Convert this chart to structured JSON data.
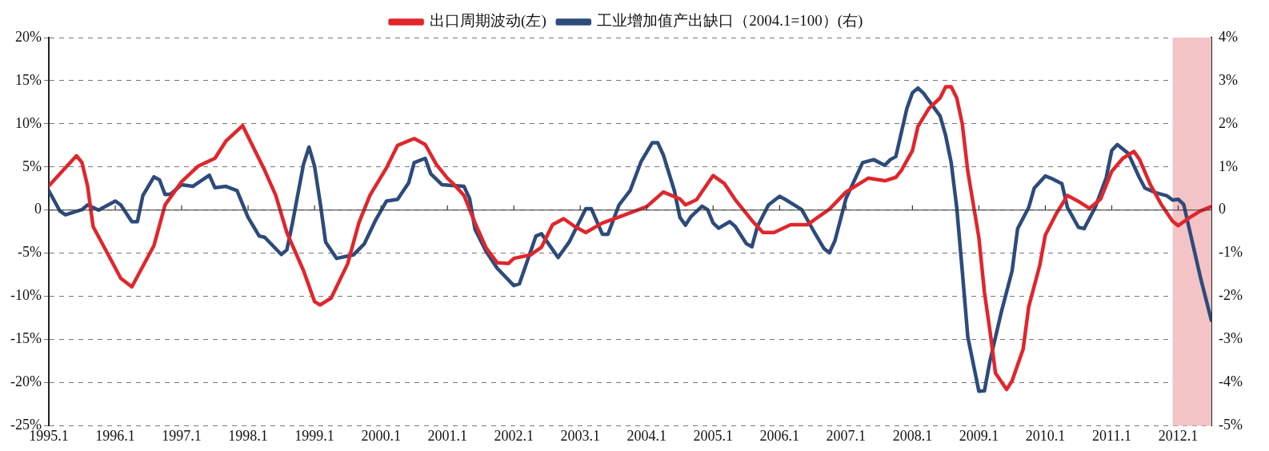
{
  "chart_data": {
    "type": "line",
    "xlim": [
      "1995-01",
      "2012-07"
    ],
    "xticks": [
      {
        "value": "1995-01",
        "label": "1995.1"
      },
      {
        "value": "1996-01",
        "label": "1996.1"
      },
      {
        "value": "1997-01",
        "label": "1997.1"
      },
      {
        "value": "1998-01",
        "label": "1998.1"
      },
      {
        "value": "1999-01",
        "label": "1999.1"
      },
      {
        "value": "2000-01",
        "label": "2000.1"
      },
      {
        "value": "2001-01",
        "label": "2001.1"
      },
      {
        "value": "2002-01",
        "label": "2002.1"
      },
      {
        "value": "2003-01",
        "label": "2003.1"
      },
      {
        "value": "2004-01",
        "label": "2004.1"
      },
      {
        "value": "2005-01",
        "label": "2005.1"
      },
      {
        "value": "2006-01",
        "label": "2006.1"
      },
      {
        "value": "2007-01",
        "label": "2007.1"
      },
      {
        "value": "2008-01",
        "label": "2008.1"
      },
      {
        "value": "2009-01",
        "label": "2009.1"
      },
      {
        "value": "2010-01",
        "label": "2010.1"
      },
      {
        "value": "2011-01",
        "label": "2011.1"
      },
      {
        "value": "2012-01",
        "label": "2012.1"
      }
    ],
    "ylim": [
      -25,
      20
    ],
    "yticks": [
      {
        "value": -25,
        "label": "-25%"
      },
      {
        "value": -20,
        "label": "-20%"
      },
      {
        "value": -15,
        "label": "-15%"
      },
      {
        "value": -10,
        "label": "-10%"
      },
      {
        "value": -5,
        "label": "-5%"
      },
      0,
      {
        "value": 5,
        "label": "5%"
      },
      {
        "value": 10,
        "label": "10%"
      },
      {
        "value": 15,
        "label": "15%"
      },
      {
        "value": 20,
        "label": "20%"
      }
    ],
    "y2lim": [
      -5,
      4
    ],
    "y2ticks": [
      {
        "value": -5,
        "label": "-5%"
      },
      {
        "value": -4,
        "label": "-4%"
      },
      {
        "value": -3,
        "label": "-3%"
      },
      {
        "value": -2,
        "label": "-2%"
      },
      {
        "value": -1,
        "label": "-1%"
      },
      0,
      {
        "value": 1,
        "label": "1%"
      },
      {
        "value": 2,
        "label": "2%"
      },
      {
        "value": 3,
        "label": "3%"
      },
      {
        "value": 4,
        "label": "4%"
      }
    ],
    "grid": "y",
    "legend": "top",
    "marker": "none",
    "line_style": "solid",
    "bands": [
      {
        "axis": "x",
        "from": "2011-12",
        "to": "2012-07",
        "color": "#f4c3c5"
      }
    ],
    "series": [
      {
        "name": "出口周期波动(左)",
        "color": "#e0262c",
        "x": [
          "1995-01",
          "1995-06",
          "1995-07",
          "1995-08",
          "1995-09",
          "1995-12",
          "1996-02",
          "1996-04",
          "1996-05",
          "1996-08",
          "1996-10",
          "1997-01",
          "1997-04",
          "1997-07",
          "1997-09",
          "1997-12",
          "1998-01",
          "1998-04",
          "1998-06",
          "1998-08",
          "1998-11",
          "1999-01",
          "1999-02",
          "1999-04",
          "1999-07",
          "1999-09",
          "1999-11",
          "2000-02",
          "2000-04",
          "2000-07",
          "2000-09",
          "2000-11",
          "2001-01",
          "2001-02",
          "2001-04",
          "2001-06",
          "2001-08",
          "2001-10",
          "2001-12",
          "2002-01",
          "2002-04",
          "2002-06",
          "2002-08",
          "2002-10",
          "2002-12",
          "2003-02",
          "2003-05",
          "2003-08",
          "2004-01",
          "2004-04",
          "2004-07",
          "2004-08",
          "2004-10",
          "2005-01",
          "2005-03",
          "2005-05",
          "2005-08",
          "2005-10",
          "2005-12",
          "2006-03",
          "2006-06",
          "2006-10",
          "2007-01",
          "2007-05",
          "2007-08",
          "2007-10",
          "2007-11",
          "2008-01",
          "2008-02",
          "2008-04",
          "2008-06",
          "2008-07",
          "2008-08",
          "2008-09",
          "2008-10",
          "2008-11",
          "2009-01",
          "2009-02",
          "2009-03",
          "2009-04",
          "2009-06",
          "2009-07",
          "2009-09",
          "2009-10",
          "2009-12",
          "2010-01",
          "2010-03",
          "2010-05",
          "2010-07",
          "2010-09",
          "2010-11",
          "2011-01",
          "2011-03",
          "2011-05",
          "2011-06",
          "2011-08",
          "2011-10",
          "2011-12",
          "2012-01",
          "2012-03",
          "2012-05",
          "2012-07"
        ],
        "values": [
          2.8,
          6.3,
          5.5,
          2.8,
          -1.9,
          -5.5,
          -7.9,
          -8.9,
          -7.7,
          -4.1,
          0.6,
          3.3,
          5.1,
          6.0,
          8.0,
          9.8,
          8.5,
          4.6,
          1.7,
          -2.6,
          -7.0,
          -10.6,
          -11.0,
          -10.2,
          -6.2,
          -1.5,
          1.7,
          4.9,
          7.5,
          8.3,
          7.6,
          5.3,
          3.7,
          3.1,
          1.7,
          -1.5,
          -4.4,
          -6.1,
          -6.2,
          -5.6,
          -5.2,
          -4.3,
          -1.7,
          -1.0,
          -1.9,
          -2.6,
          -1.5,
          -0.8,
          0.4,
          2.1,
          1.3,
          0.6,
          1.2,
          4.0,
          3.1,
          1.2,
          -1.2,
          -2.6,
          -2.6,
          -1.7,
          -1.7,
          0.1,
          2.1,
          3.7,
          3.4,
          3.8,
          4.6,
          6.9,
          9.7,
          11.8,
          13.0,
          14.3,
          14.3,
          13.0,
          10.0,
          4.5,
          -3.2,
          -9.5,
          -14.0,
          -18.9,
          -20.8,
          -19.8,
          -16.1,
          -11.2,
          -6.4,
          -2.9,
          -0.4,
          1.7,
          1.0,
          0.2,
          1.3,
          4.5,
          6.0,
          6.8,
          5.9,
          2.9,
          0.6,
          -1.3,
          -1.8,
          -0.9,
          -0.1,
          0.4
        ]
      },
      {
        "name": "工业增加值产出缺口（2004.1=100）(右)",
        "color": "#2d4b7b",
        "axis": "y2",
        "x": [
          "1995-01",
          "1995-03",
          "1995-04",
          "1995-07",
          "1995-08",
          "1995-10",
          "1996-01",
          "1996-02",
          "1996-04",
          "1996-05",
          "1996-06",
          "1996-08",
          "1996-09",
          "1996-10",
          "1996-11",
          "1997-01",
          "1997-03",
          "1997-06",
          "1997-07",
          "1997-09",
          "1997-11",
          "1998-01",
          "1998-03",
          "1998-04",
          "1998-07",
          "1998-08",
          "1998-09",
          "1998-11",
          "1998-12",
          "1999-01",
          "1999-02",
          "1999-03",
          "1999-05",
          "1999-08",
          "1999-10",
          "1999-12",
          "2000-02",
          "2000-04",
          "2000-06",
          "2000-07",
          "2000-09",
          "2000-10",
          "2000-12",
          "2001-04",
          "2001-05",
          "2001-06",
          "2001-08",
          "2001-10",
          "2002-01",
          "2002-02",
          "2002-05",
          "2002-06",
          "2002-09",
          "2002-11",
          "2003-02",
          "2003-03",
          "2003-05",
          "2003-06",
          "2003-08",
          "2003-10",
          "2003-12",
          "2004-02",
          "2004-03",
          "2004-04",
          "2004-06",
          "2004-07",
          "2004-08",
          "2004-09",
          "2004-11",
          "2004-12",
          "2005-01",
          "2005-02",
          "2005-04",
          "2005-05",
          "2005-07",
          "2005-08",
          "2005-09",
          "2005-11",
          "2006-01",
          "2006-02",
          "2006-05",
          "2006-07",
          "2006-09",
          "2006-10",
          "2006-11",
          "2007-01",
          "2007-04",
          "2007-06",
          "2007-08",
          "2007-09",
          "2007-10",
          "2007-12",
          "2008-01",
          "2008-02",
          "2008-03",
          "2008-06",
          "2008-07",
          "2008-08",
          "2008-09",
          "2008-10",
          "2008-11",
          "2009-01",
          "2009-02",
          "2009-03",
          "2009-05",
          "2009-07",
          "2009-08",
          "2009-10",
          "2009-11",
          "2010-01",
          "2010-02",
          "2010-04",
          "2010-05",
          "2010-07",
          "2010-08",
          "2010-10",
          "2010-12",
          "2011-01",
          "2011-02",
          "2011-04",
          "2011-06",
          "2011-07",
          "2011-09",
          "2011-11",
          "2011-12",
          "2012-01",
          "2012-02",
          "2012-03",
          "2012-05",
          "2012-07"
        ],
        "values": [
          0.45,
          -0.02,
          -0.11,
          0.01,
          0.12,
          0.0,
          0.21,
          0.12,
          -0.27,
          -0.27,
          0.34,
          0.77,
          0.7,
          0.36,
          0.37,
          0.59,
          0.55,
          0.81,
          0.52,
          0.55,
          0.45,
          -0.17,
          -0.6,
          -0.63,
          -1.03,
          -0.92,
          -0.31,
          1.06,
          1.46,
          1.02,
          0.19,
          -0.74,
          -1.12,
          -1.04,
          -0.78,
          -0.24,
          0.21,
          0.25,
          0.63,
          1.1,
          1.2,
          0.84,
          0.59,
          0.55,
          0.27,
          -0.45,
          -0.96,
          -1.35,
          -1.75,
          -1.71,
          -0.6,
          -0.55,
          -1.1,
          -0.74,
          0.03,
          0.03,
          -0.56,
          -0.56,
          0.12,
          0.45,
          1.13,
          1.56,
          1.56,
          1.28,
          0.45,
          -0.17,
          -0.35,
          -0.15,
          0.09,
          0.01,
          -0.3,
          -0.42,
          -0.27,
          -0.38,
          -0.78,
          -0.85,
          -0.38,
          0.12,
          0.32,
          0.25,
          0.01,
          -0.45,
          -0.89,
          -0.99,
          -0.71,
          0.27,
          1.1,
          1.17,
          1.04,
          1.17,
          1.24,
          2.36,
          2.72,
          2.83,
          2.71,
          2.18,
          1.73,
          1.1,
          0.06,
          -1.41,
          -2.94,
          -4.2,
          -4.19,
          -3.5,
          -2.39,
          -1.41,
          -0.43,
          0.06,
          0.51,
          0.79,
          0.74,
          0.61,
          0.06,
          -0.4,
          -0.43,
          0.06,
          0.75,
          1.38,
          1.52,
          1.31,
          0.75,
          0.51,
          0.4,
          0.33,
          0.23,
          0.25,
          0.13,
          -0.43,
          -1.55,
          -2.56
        ]
      }
    ]
  }
}
